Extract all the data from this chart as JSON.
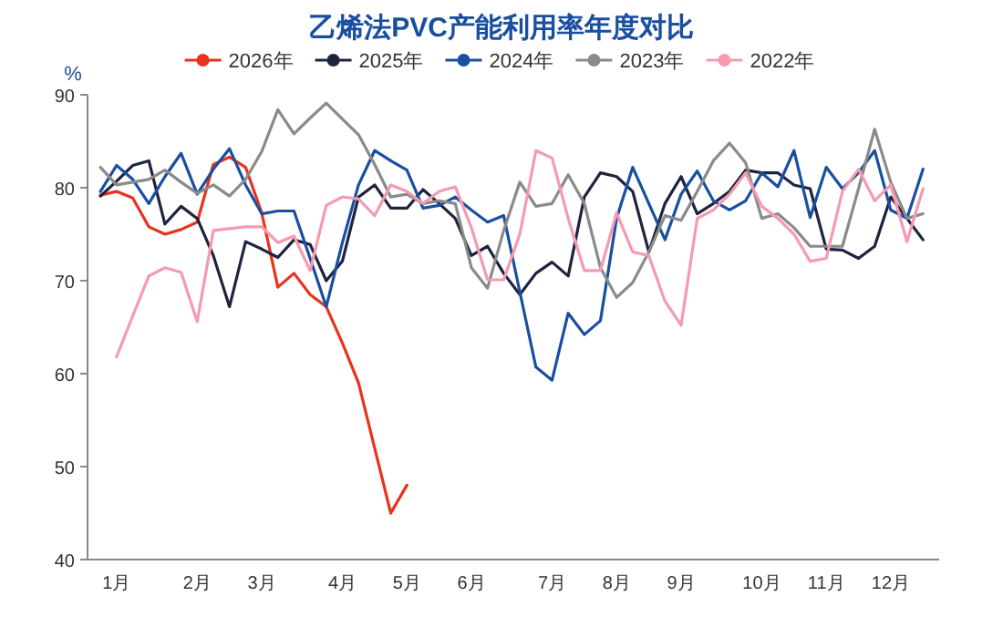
{
  "chart_data": {
    "type": "line",
    "title": "乙烯法PVC产能利用率年度对比",
    "ylabel": "%",
    "categories": [
      null,
      "1月",
      null,
      null,
      null,
      null,
      "2月",
      null,
      null,
      null,
      "3月",
      null,
      null,
      null,
      null,
      "4月",
      null,
      null,
      null,
      "5月",
      null,
      null,
      null,
      "6月",
      null,
      null,
      null,
      null,
      "7月",
      null,
      null,
      null,
      "8月",
      null,
      null,
      null,
      "9月",
      null,
      null,
      null,
      null,
      "10月",
      null,
      null,
      null,
      "11月",
      null,
      null,
      null,
      "12月",
      null,
      null
    ],
    "ylim": [
      40,
      90
    ],
    "yticks": [
      40,
      50,
      60,
      70,
      80,
      90
    ],
    "legend": "top",
    "grid": false,
    "marker": "none",
    "series": [
      {
        "name": "2026年",
        "color": "#e8321e",
        "values": [
          79.2,
          79.6,
          78.9,
          75.8,
          75.0,
          75.5,
          76.3,
          82.5,
          83.3,
          82.2,
          77.3,
          69.3,
          70.8,
          68.5,
          67.2,
          63.3,
          59.0,
          52.0,
          45.0,
          48.0,
          null,
          null,
          null,
          null,
          null,
          null,
          null,
          null,
          null,
          null,
          null,
          null,
          null,
          null,
          null,
          null,
          null,
          null,
          null,
          null,
          null,
          null,
          null,
          null,
          null,
          null,
          null,
          null,
          null,
          null,
          null,
          null
        ]
      },
      {
        "name": "2025年",
        "color": "#1f2340",
        "values": [
          79.1,
          80.7,
          82.4,
          82.9,
          76.1,
          78.0,
          76.7,
          72.7,
          67.2,
          74.2,
          73.4,
          72.5,
          74.4,
          73.9,
          70.0,
          72.1,
          79.0,
          80.3,
          77.8,
          77.8,
          79.8,
          78.3,
          76.7,
          72.7,
          73.7,
          70.8,
          68.5,
          70.8,
          72.0,
          70.5,
          79.0,
          81.6,
          81.2,
          79.6,
          73.1,
          78.3,
          81.2,
          77.2,
          78.3,
          79.6,
          81.9,
          81.6,
          81.6,
          80.3,
          79.9,
          73.4,
          73.3,
          72.4,
          73.7,
          79.0,
          76.7,
          74.4
        ]
      },
      {
        "name": "2024年",
        "color": "#1a4fa0",
        "values": [
          79.6,
          82.4,
          80.9,
          78.3,
          81.2,
          83.7,
          79.3,
          82.0,
          84.2,
          80.3,
          77.2,
          77.5,
          77.5,
          72.4,
          67.2,
          74.1,
          80.3,
          84.0,
          82.9,
          81.9,
          77.8,
          78.1,
          79.0,
          77.6,
          76.3,
          77.0,
          68.8,
          60.7,
          59.3,
          66.5,
          64.2,
          65.7,
          76.7,
          82.2,
          78.3,
          74.4,
          79.3,
          81.8,
          78.6,
          77.6,
          78.6,
          81.6,
          80.1,
          84.0,
          76.8,
          82.2,
          79.9,
          81.6,
          84.0,
          77.6,
          76.7,
          82.0
        ]
      },
      {
        "name": "2023年",
        "color": "#8a8a8a",
        "values": [
          82.2,
          80.3,
          80.6,
          80.9,
          81.9,
          80.6,
          79.4,
          80.3,
          79.1,
          80.9,
          83.9,
          88.4,
          85.8,
          87.5,
          89.1,
          87.4,
          85.7,
          82.5,
          79.0,
          79.3,
          78.3,
          78.6,
          78.3,
          71.4,
          69.2,
          75.4,
          80.6,
          78.0,
          78.3,
          81.4,
          78.3,
          71.4,
          68.2,
          69.8,
          73.1,
          77.0,
          76.5,
          79.6,
          82.9,
          84.8,
          82.7,
          76.7,
          77.2,
          75.7,
          73.7,
          73.7,
          73.7,
          79.9,
          86.3,
          80.6,
          76.7,
          77.2
        ]
      },
      {
        "name": "2022年",
        "color": "#f59ab0",
        "values": [
          null,
          61.8,
          66.2,
          70.5,
          71.4,
          70.9,
          65.6,
          75.4,
          75.6,
          75.8,
          75.8,
          74.1,
          74.8,
          71.1,
          78.1,
          79.0,
          78.8,
          77.0,
          80.3,
          79.6,
          78.3,
          79.6,
          80.1,
          75.7,
          70.1,
          70.1,
          75.0,
          84.0,
          83.2,
          76.7,
          71.1,
          71.1,
          77.3,
          73.1,
          72.7,
          67.8,
          65.2,
          76.7,
          77.6,
          79.3,
          81.6,
          78.0,
          76.7,
          75.0,
          72.1,
          72.4,
          79.6,
          82.0,
          78.6,
          80.3,
          74.2,
          79.9
        ]
      }
    ]
  }
}
